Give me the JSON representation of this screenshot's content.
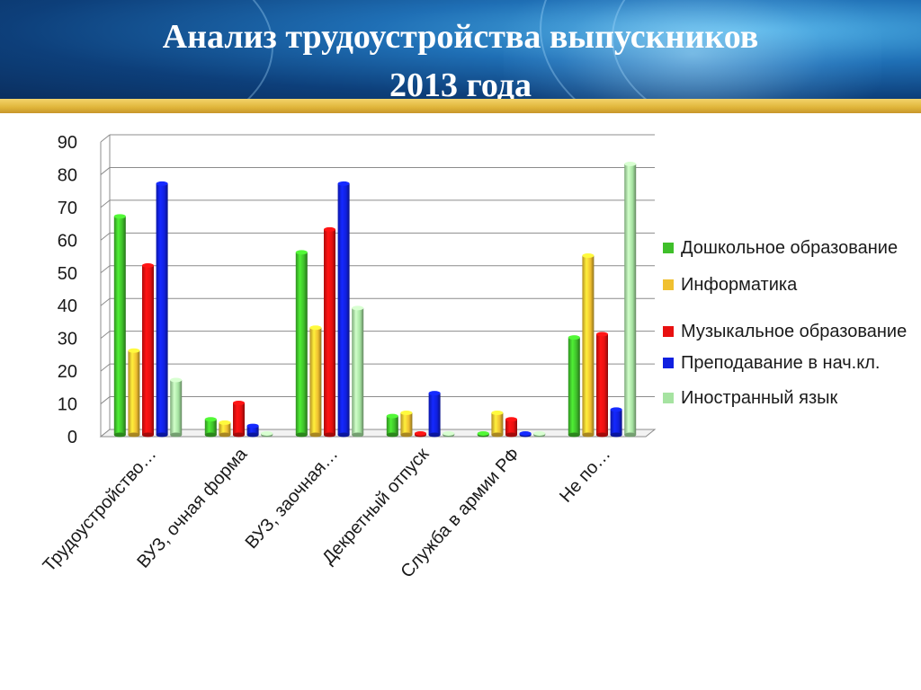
{
  "header": {
    "title_line1": "Анализ трудоустройства выпускников",
    "title_line2": "2013 года"
  },
  "colors": {
    "header_bg": "#1f6fb5",
    "gold_bar": "#e0b53a"
  },
  "chart_data": {
    "type": "bar",
    "style": "3d-clustered-columns",
    "categories": [
      "Трудоустройство…",
      "ВУЗ, очная форма",
      "ВУЗ, заочная…",
      "Декретный отпуск",
      "Служба в армии РФ",
      "Не по…"
    ],
    "series": [
      {
        "name": "Дошкольное образование",
        "color": "#3fbf2a",
        "values": [
          67,
          5,
          56,
          6,
          0,
          30
        ]
      },
      {
        "name": "Информатика",
        "color": "#f0c030",
        "values": [
          26,
          4,
          33,
          7,
          7,
          55
        ]
      },
      {
        "name": "Музыкальное образование",
        "color": "#e81010",
        "values": [
          52,
          10,
          63,
          0,
          5,
          31
        ]
      },
      {
        "name": "Преподавание в нач.кл.",
        "color": "#1020e0",
        "values": [
          77,
          3,
          77,
          13,
          0,
          8
        ]
      },
      {
        "name": "Иностранный язык",
        "color": "#a6e3a1",
        "values": [
          17,
          0,
          39,
          0,
          0,
          83
        ]
      }
    ],
    "ylim": [
      0,
      90
    ],
    "yticks": [
      "0",
      "10",
      "20",
      "30",
      "40",
      "50",
      "60",
      "70",
      "80",
      "90"
    ],
    "grid": true,
    "legend_position": "right"
  }
}
